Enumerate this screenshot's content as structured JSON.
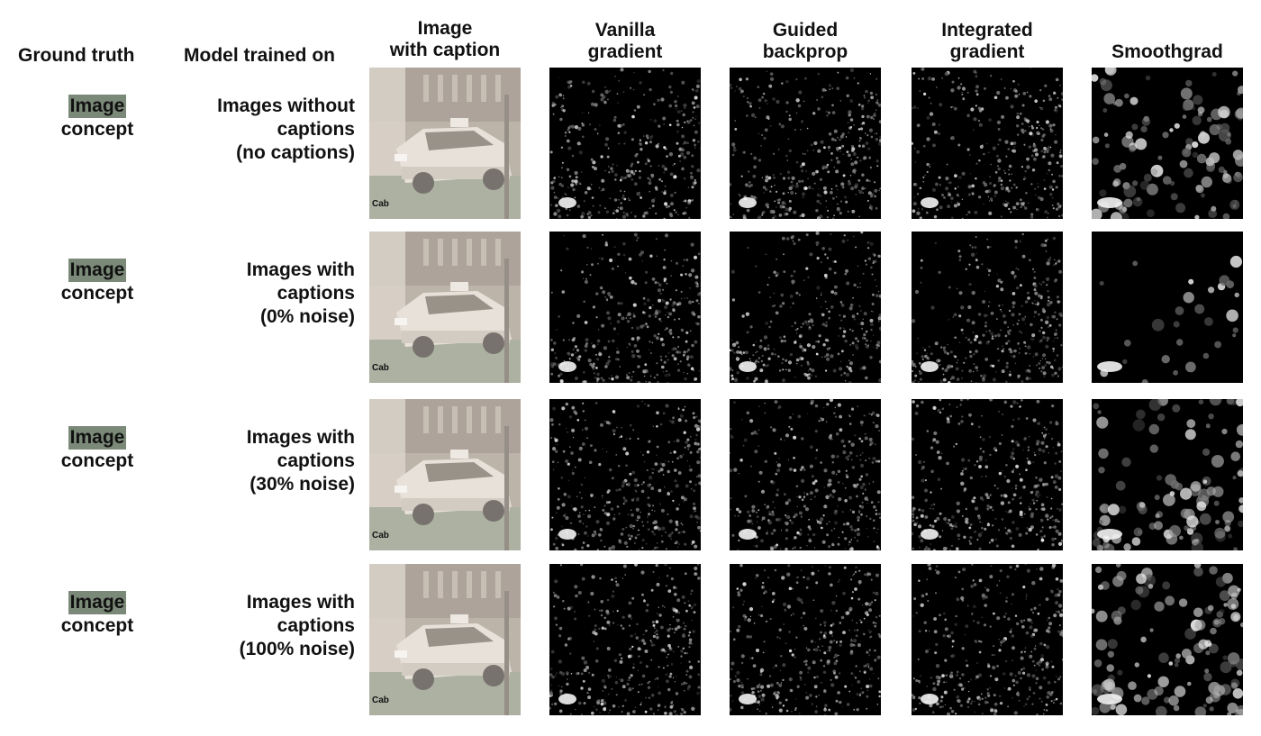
{
  "headers": {
    "ground_truth": "Ground truth",
    "model_trained_on": "Model trained on",
    "image_with_caption": [
      "Image",
      "with caption"
    ],
    "methods": [
      [
        "Vanilla",
        "gradient"
      ],
      [
        "Guided",
        "backprop"
      ],
      [
        "Integrated",
        "gradient"
      ],
      [
        "Smoothgrad"
      ]
    ]
  },
  "caption_text": "Cab",
  "colors": {
    "highlight": "#7b8a78",
    "photo_tint": "#b6a99a",
    "saliency_background": "#000000"
  },
  "rows": [
    {
      "ground_truth": {
        "highlight": "Image",
        "rest": "concept"
      },
      "model": [
        "Images without",
        "captions",
        "(no captions)"
      ]
    },
    {
      "ground_truth": {
        "highlight": "Image",
        "rest": "concept"
      },
      "model": [
        "Images with",
        "captions",
        "(0% noise)"
      ]
    },
    {
      "ground_truth": {
        "highlight": "Image",
        "rest": "concept"
      },
      "model": [
        "Images with",
        "captions",
        "(30% noise)"
      ]
    },
    {
      "ground_truth": {
        "highlight": "Image",
        "rest": "concept"
      },
      "model": [
        "Images with",
        "captions",
        "(100% noise)"
      ]
    }
  ]
}
